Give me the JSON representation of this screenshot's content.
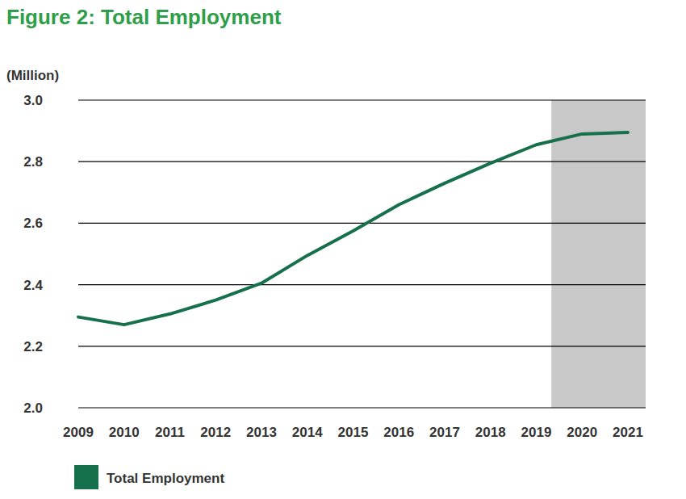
{
  "chart_data": {
    "type": "line",
    "title": "Figure 2: Total Employment",
    "ylabel": "(Million)",
    "categories": [
      "2009",
      "2010",
      "2011",
      "2012",
      "2013",
      "2014",
      "2015",
      "2016",
      "2017",
      "2018",
      "2019",
      "2020",
      "2021"
    ],
    "series": [
      {
        "name": "Total Employment",
        "color": "#17704c",
        "values": [
          2.295,
          2.27,
          2.305,
          2.35,
          2.405,
          2.495,
          2.575,
          2.66,
          2.73,
          2.795,
          2.855,
          2.89,
          2.895
        ]
      }
    ],
    "ylim": [
      2,
      3
    ],
    "yticks": [
      {
        "value": 2,
        "label": "2.0"
      },
      2.2,
      2.4,
      2.6,
      2.8,
      {
        "value": 3,
        "label": "3.0"
      }
    ],
    "shaded": [
      "2020",
      "2021"
    ],
    "grid": true,
    "legend": "bottom-left"
  }
}
